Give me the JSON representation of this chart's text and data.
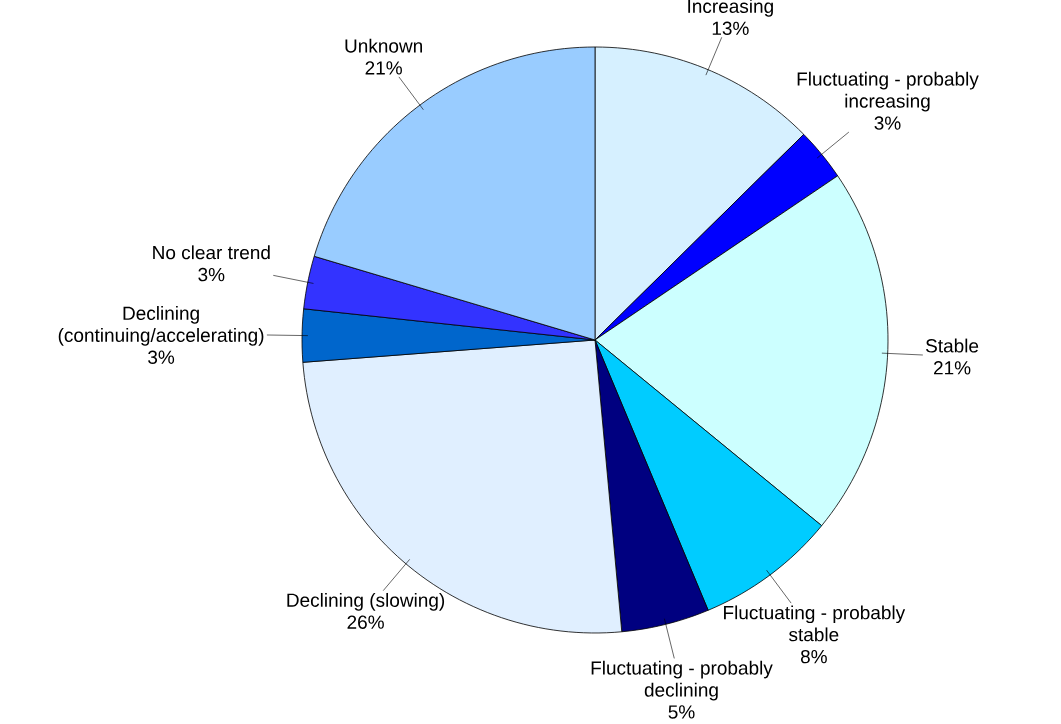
{
  "chart_data": {
    "type": "pie",
    "categories": [
      "Increasing",
      "Fluctuating - probably increasing",
      "Stable",
      "Fluctuating - probably stable",
      "Fluctuating - probably declining",
      "Declining (slowing)",
      "Declining (continuing/accelerating)",
      "No clear trend",
      "Unknown"
    ],
    "values": [
      13,
      3,
      21,
      8,
      5,
      26,
      3,
      3,
      21
    ],
    "value_labels": [
      "13%",
      "3%",
      "21%",
      "8%",
      "5%",
      "26%",
      "3%",
      "3%",
      "21%"
    ],
    "colors": [
      "#d6f0ff",
      "#0000ff",
      "#ccffff",
      "#00ccff",
      "#000080",
      "#e0efff",
      "#0066cc",
      "#3333ff",
      "#99ccff"
    ]
  }
}
